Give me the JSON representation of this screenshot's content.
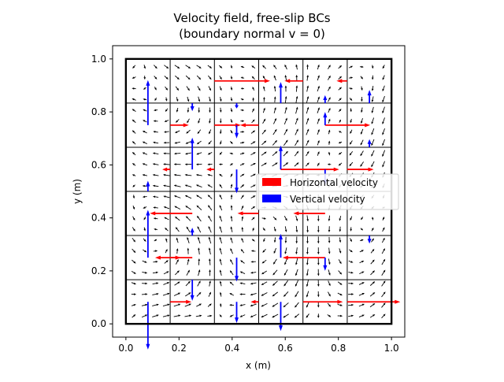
{
  "chart_data": {
    "type": "quiver",
    "title_lines": [
      "Velocity field, free-slip BCs",
      "(boundary normal v = 0)"
    ],
    "xlabel": "x (m)",
    "ylabel": "y (m)",
    "xlim": [
      -0.05,
      1.05
    ],
    "ylim": [
      -0.05,
      1.05
    ],
    "xticks": [
      0.0,
      0.2,
      0.4,
      0.6,
      0.8,
      1.0
    ],
    "yticks": [
      0.0,
      0.2,
      0.4,
      0.6,
      0.8,
      1.0
    ],
    "xtick_labels": [
      "0.0",
      "0.2",
      "0.4",
      "0.6",
      "0.8",
      "1.0"
    ],
    "ytick_labels": [
      "0.0",
      "0.2",
      "0.4",
      "0.6",
      "0.8",
      "1.0"
    ],
    "domain": [
      0,
      1,
      0,
      1
    ],
    "grid_divisions": 6,
    "grid": true,
    "legend_position": "right",
    "legend": [
      {
        "label": "Horizontal velocity",
        "color": "#ff0000"
      },
      {
        "label": "Vertical velocity",
        "color": "#0000ff"
      }
    ],
    "horizontal_velocity": [
      {
        "x": 0.333,
        "y": 0.917,
        "u": 0.21
      },
      {
        "x": 0.667,
        "y": 0.917,
        "u": -0.07
      },
      {
        "x": 0.833,
        "y": 0.917,
        "u": -0.04
      },
      {
        "x": 0.167,
        "y": 0.75,
        "u": 0.07
      },
      {
        "x": 0.333,
        "y": 0.75,
        "u": 0.1
      },
      {
        "x": 0.5,
        "y": 0.75,
        "u": -0.07
      },
      {
        "x": 0.75,
        "y": 0.75,
        "u": 0.17
      },
      {
        "x": 0.167,
        "y": 0.583,
        "u": -0.03
      },
      {
        "x": 0.333,
        "y": 0.583,
        "u": -0.03
      },
      {
        "x": 0.583,
        "y": 0.583,
        "u": 0.22
      },
      {
        "x": 0.833,
        "y": 0.583,
        "u": 0.1
      },
      {
        "x": 0.25,
        "y": 0.417,
        "u": -0.16
      },
      {
        "x": 0.5,
        "y": 0.417,
        "u": -0.08
      },
      {
        "x": 0.75,
        "y": 0.417,
        "u": -0.12
      },
      {
        "x": 0.167,
        "y": 0.25,
        "u": 0.04
      },
      {
        "x": 0.25,
        "y": 0.25,
        "u": -0.14
      },
      {
        "x": 0.75,
        "y": 0.25,
        "u": -0.16
      },
      {
        "x": 0.167,
        "y": 0.083,
        "u": 0.08
      },
      {
        "x": 0.5,
        "y": 0.083,
        "u": -0.03
      },
      {
        "x": 0.667,
        "y": 0.083,
        "u": 0.15
      },
      {
        "x": 0.833,
        "y": 0.083,
        "u": 0.2
      }
    ],
    "vertical_velocity": [
      {
        "x": 0.583,
        "y": 0.833,
        "v": 0.08
      },
      {
        "x": 0.75,
        "y": 0.833,
        "v": 0.03
      },
      {
        "x": 0.917,
        "y": 0.833,
        "v": 0.05
      },
      {
        "x": 0.25,
        "y": 0.833,
        "v": -0.03
      },
      {
        "x": 0.417,
        "y": 0.833,
        "v": -0.02
      },
      {
        "x": 0.083,
        "y": 0.75,
        "v": 0.17
      },
      {
        "x": 0.417,
        "y": 0.75,
        "v": -0.05
      },
      {
        "x": 0.75,
        "y": 0.75,
        "v": 0.05
      },
      {
        "x": 0.917,
        "y": 0.667,
        "v": 0.03
      },
      {
        "x": 0.25,
        "y": 0.583,
        "v": 0.12
      },
      {
        "x": 0.417,
        "y": 0.583,
        "v": -0.09
      },
      {
        "x": 0.583,
        "y": 0.583,
        "v": 0.09
      },
      {
        "x": 0.75,
        "y": 0.583,
        "v": -0.06
      },
      {
        "x": 0.083,
        "y": 0.5,
        "v": 0.04
      },
      {
        "x": 0.083,
        "y": 0.25,
        "v": 0.18
      },
      {
        "x": 0.25,
        "y": 0.333,
        "v": 0.03
      },
      {
        "x": 0.917,
        "y": 0.333,
        "v": -0.03
      },
      {
        "x": 0.417,
        "y": 0.25,
        "v": -0.09
      },
      {
        "x": 0.583,
        "y": 0.25,
        "v": 0.09
      },
      {
        "x": 0.75,
        "y": 0.25,
        "v": -0.05
      },
      {
        "x": 0.25,
        "y": 0.167,
        "v": -0.08
      },
      {
        "x": 0.083,
        "y": 0.083,
        "v": -0.18
      },
      {
        "x": 0.417,
        "y": 0.083,
        "v": -0.08
      },
      {
        "x": 0.583,
        "y": 0.083,
        "v": -0.11
      }
    ]
  }
}
